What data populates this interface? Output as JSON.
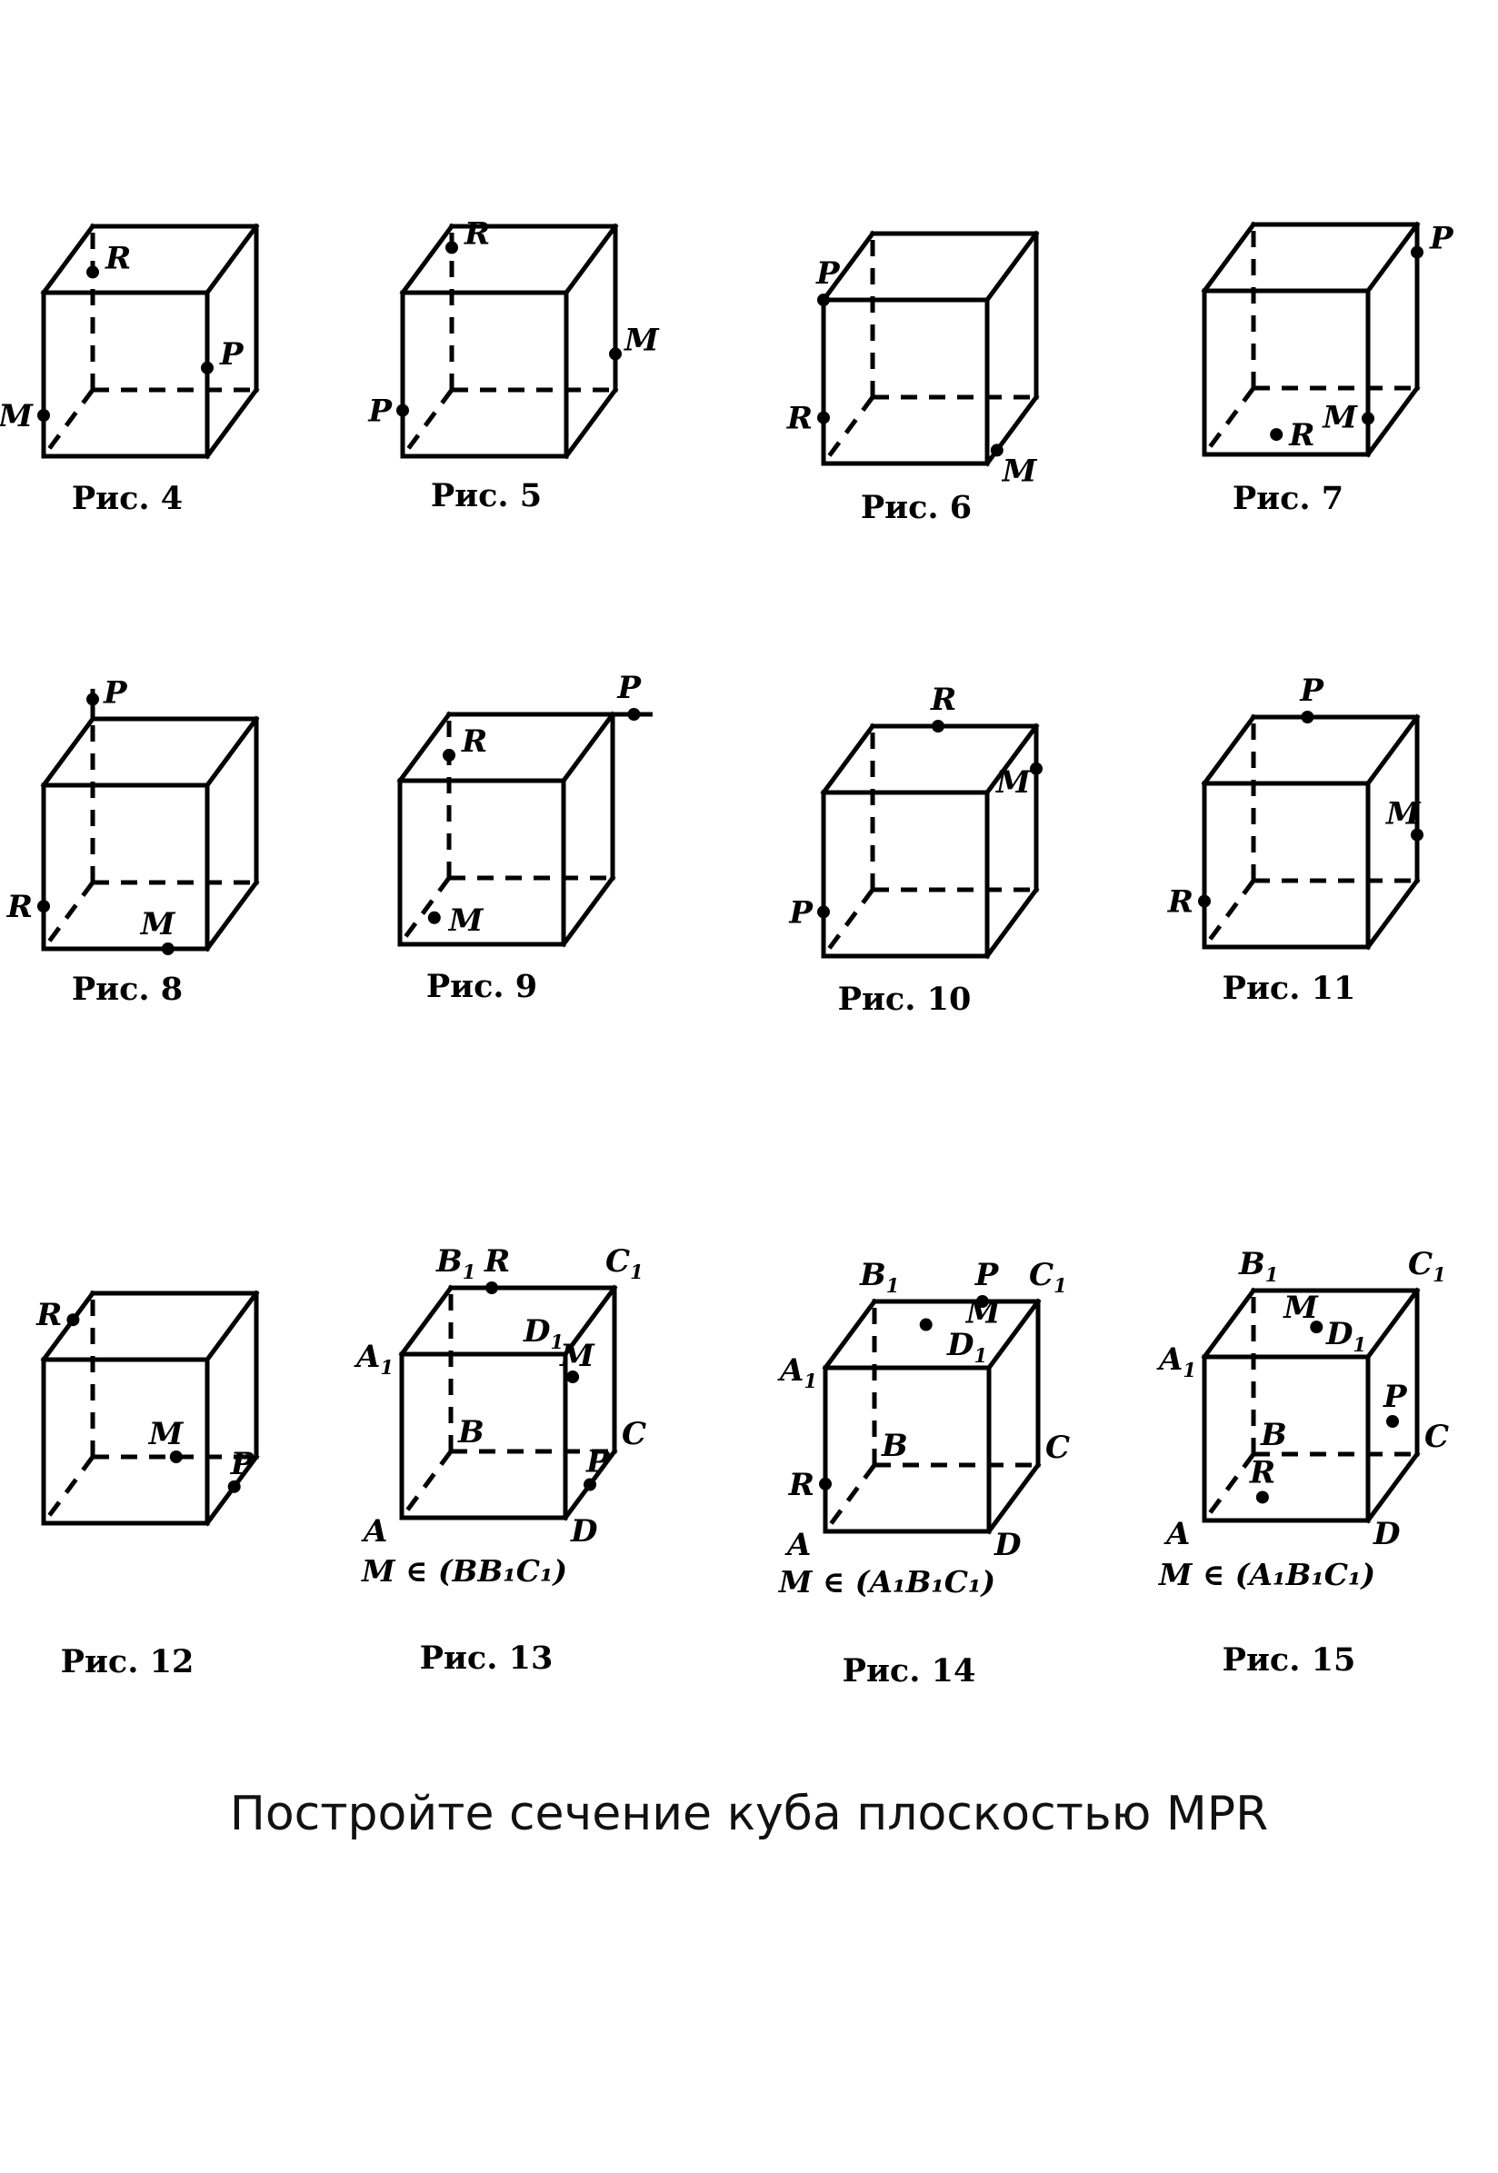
{
  "task": "Постройте сечение куба плоскостью MPR",
  "figures": [
    {
      "id": "fig4",
      "caption": "Рис. 4",
      "points": [
        {
          "label": "R",
          "edge": "hid_vert",
          "t": 0.28
        },
        {
          "label": "P",
          "edge": "front_right",
          "t": 0.46
        },
        {
          "label": "M",
          "edge": "front_left",
          "t": 0.75
        }
      ]
    },
    {
      "id": "fig5",
      "caption": "Рис. 5",
      "points": [
        {
          "label": "R",
          "edge": "hid_vert",
          "t": 0.13
        },
        {
          "label": "M",
          "edge": "back_right",
          "t": 0.78
        },
        {
          "label": "P",
          "edge": "front_left",
          "t": 0.72
        }
      ]
    },
    {
      "id": "fig6",
      "caption": "Рис. 6",
      "points": [
        {
          "label": "P",
          "edge": "top_back_left",
          "t": 0.0
        },
        {
          "label": "R",
          "edge": "front_left",
          "t": 0.72
        },
        {
          "label": "M",
          "edge": "bot_right_depth",
          "t": 0.2
        }
      ]
    },
    {
      "id": "fig7",
      "caption": "Рис. 7",
      "points": [
        {
          "label": "P",
          "edge": "back_right",
          "t": 0.17
        },
        {
          "label": "R",
          "face": "bottom",
          "u": 0.35,
          "v": 0.3
        },
        {
          "label": "M",
          "edge": "front_right",
          "t": 0.78
        }
      ]
    },
    {
      "id": "fig8",
      "caption": "Рис. 8",
      "points": [
        {
          "label": "P",
          "edge": "hid_vert",
          "t": -0.12
        },
        {
          "label": "R",
          "edge": "front_left",
          "t": 0.74
        },
        {
          "label": "M",
          "edge": "front_bottom",
          "t": 0.76
        }
      ]
    },
    {
      "id": "fig9",
      "caption": "Рис. 9",
      "points": [
        {
          "label": "P",
          "extend": "top_back",
          "t": 1.13
        },
        {
          "label": "R",
          "edge": "hid_vert",
          "t": 0.25
        },
        {
          "label": "M",
          "face": "bottom",
          "u": 0.09,
          "v": 0.4
        }
      ]
    },
    {
      "id": "fig10",
      "caption": "Рис. 10",
      "points": [
        {
          "label": "R",
          "edge": "top_back",
          "t": 0.4
        },
        {
          "label": "M",
          "edge": "back_right",
          "t": 0.26
        },
        {
          "label": "P",
          "edge": "front_left",
          "t": 0.73
        }
      ]
    },
    {
      "id": "fig11",
      "caption": "Рис. 11",
      "points": [
        {
          "label": "P",
          "edge": "top_back",
          "t": 0.33
        },
        {
          "label": "M",
          "edge": "back_right",
          "t": 0.72
        },
        {
          "label": "R",
          "edge": "front_left",
          "t": 0.72
        }
      ]
    },
    {
      "id": "fig12",
      "caption": "Рис. 12",
      "points": [
        {
          "label": "R",
          "edge": "top_back_left_diag",
          "t": 0.6
        },
        {
          "label": "M",
          "edge": "hid_back",
          "t": 0.51
        },
        {
          "label": "P",
          "edge": "bot_right_depth",
          "t": 0.55
        }
      ]
    },
    {
      "id": "fig13",
      "caption": "Рис. 13",
      "condition": "M ∈ (BB₁C₁)",
      "vertices": {
        "A": "A",
        "B": "B",
        "C": "C",
        "D": "D",
        "A1": "A₁",
        "B1": "B₁",
        "C1": "C₁",
        "D1": "D₁"
      },
      "points": [
        {
          "label": "R",
          "edge": "top_back",
          "t": 0.25
        },
        {
          "label": "M",
          "face": "right",
          "u": 0.15,
          "v": 0.2
        },
        {
          "label": "P",
          "edge": "bot_right_depth",
          "t": 0.5
        }
      ]
    },
    {
      "id": "fig14",
      "caption": "Рис. 14",
      "condition": "M ∈ (A₁B₁C₁)",
      "vertices": {
        "A": "A",
        "B": "B",
        "C": "C",
        "D": "D",
        "A1": "A₁",
        "B1": "B₁",
        "C1": "C₁",
        "D1": "D₁"
      },
      "points": [
        {
          "label": "P",
          "edge": "top_back",
          "t": 0.66
        },
        {
          "label": "M",
          "face": "top",
          "u": 0.42,
          "v": 0.35
        },
        {
          "label": "R",
          "edge": "front_left",
          "t": 0.71
        }
      ]
    },
    {
      "id": "fig15",
      "caption": "Рис. 15",
      "condition": "M ∈ (A₁B₁C₁)",
      "vertices": {
        "A": "A",
        "B": "B",
        "C": "C",
        "D": "D",
        "A1": "A₁",
        "B1": "B₁",
        "C1": "C₁",
        "D1": "D₁"
      },
      "points": [
        {
          "label": "M",
          "face": "top",
          "u": 0.55,
          "v": 0.55
        },
        {
          "label": "P",
          "face": "backwall",
          "u": 0.85,
          "v": 0.2
        },
        {
          "label": "R",
          "face": "bottom",
          "u": 0.25,
          "v": 0.35
        }
      ]
    }
  ]
}
